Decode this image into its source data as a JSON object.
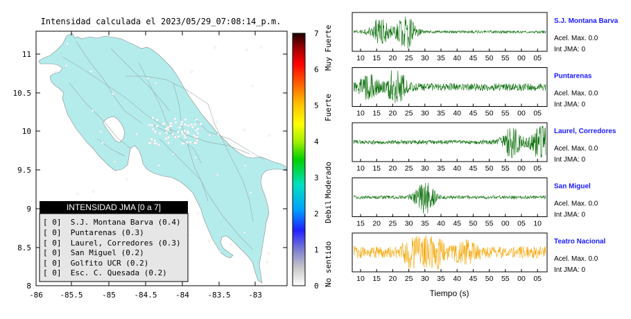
{
  "map": {
    "title": "Intensidad calculada el 2023/05/29_07:08:14_p.m.",
    "x_ticks": [
      "-86",
      "-85.5",
      "-85",
      "-84.5",
      "-84",
      "-83.5",
      "-83"
    ],
    "y_ticks": [
      "11",
      "10.5",
      "10",
      "9.5",
      "9",
      "8.5",
      "8"
    ],
    "land_color": "#b4ecec",
    "legend": {
      "title": "INTENSIDAD JMA [0 a 7]",
      "items": [
        "[ 0]  S.J. Montana Barva (0.4)",
        "[ 0]  Puntarenas (0.3)",
        "[ 0]  Laurel, Corredores (0.3)",
        "[ 0]  San Miguel (0.2)",
        "[ 0]  Golfito UCR (0.2)",
        "[ 0]  Esc. C. Quesada (0.2)"
      ]
    }
  },
  "colorbar": {
    "ticks": [
      "7",
      "6",
      "5",
      "4",
      "3",
      "2",
      "1",
      "0"
    ],
    "category_labels": [
      "Muy Fuerte",
      "Fuerte",
      "Moderado",
      "Debil",
      "No sentido"
    ]
  },
  "chart_data": [
    {
      "type": "map",
      "title": "Intensidad calculada el 2023/05/29_07:08:14_p.m.",
      "xlim": [
        -86,
        -82.6
      ],
      "ylim": [
        8,
        11.3
      ],
      "grid": false,
      "legend_position": "bottom-left",
      "legend_title": "INTENSIDAD JMA [0 a 7]",
      "stations": [
        {
          "name": "S.J. Montana Barva",
          "jma": 0,
          "intensity": 0.4
        },
        {
          "name": "Puntarenas",
          "jma": 0,
          "intensity": 0.3
        },
        {
          "name": "Laurel, Corredores",
          "jma": 0,
          "intensity": 0.3
        },
        {
          "name": "San Miguel",
          "jma": 0,
          "intensity": 0.2
        },
        {
          "name": "Golfito UCR",
          "jma": 0,
          "intensity": 0.2
        },
        {
          "name": "Esc. C. Quesada",
          "jma": 0,
          "intensity": 0.2
        }
      ],
      "colorbar": {
        "range": [
          0,
          7
        ],
        "ticks": [
          0,
          1,
          2,
          3,
          4,
          5,
          6,
          7
        ],
        "labels": [
          "No sentido",
          "Debil",
          "Moderado",
          "Fuerte",
          "Muy Fuerte"
        ]
      }
    },
    {
      "type": "line",
      "xlabel": "Tiempo (s)",
      "traces": [
        {
          "station": "S.J. Montana Barva",
          "acel_max": "Acel. Max. 0.0",
          "int_jma": "Int JMA: 0",
          "color": "#0a6e0a",
          "x_tick_labels": [
            "10",
            "15",
            "20",
            "25",
            "30",
            "35",
            "40",
            "45",
            "50",
            "55",
            "00",
            "05"
          ],
          "bursts": [
            {
              "at_label_index": 1.2,
              "amp": 0.75
            },
            {
              "at_label_index": 2.8,
              "amp": 0.95
            }
          ],
          "noise": 0.08
        },
        {
          "station": "Puntarenas",
          "acel_max": "Acel. Max. 0.0",
          "int_jma": "Int JMA: 0",
          "color": "#0a6e0a",
          "x_tick_labels": [
            "10",
            "15",
            "20",
            "25",
            "30",
            "35",
            "40",
            "45",
            "50",
            "55",
            "00",
            "05"
          ],
          "bursts": [
            {
              "at_label_index": 0.5,
              "amp": 0.6
            },
            {
              "at_label_index": 2.2,
              "amp": 0.95
            }
          ],
          "noise": 0.22
        },
        {
          "station": "Laurel, Corredores",
          "acel_max": "Acel. Max. 0.0",
          "int_jma": "Int JMA: 0",
          "color": "#0a6e0a",
          "x_tick_labels": [
            "10",
            "15",
            "20",
            "25",
            "30",
            "35",
            "40",
            "45",
            "50",
            "55",
            "00",
            "05"
          ],
          "bursts": [
            {
              "at_label_index": 9.4,
              "amp": 0.85
            },
            {
              "at_label_index": 11.2,
              "amp": 0.95
            }
          ],
          "noise": 0.12
        },
        {
          "station": "San Miguel",
          "acel_max": "Acel. Max. 0.0",
          "int_jma": "Int JMA: 0",
          "color": "#0a6e0a",
          "x_tick_labels": [
            "15",
            "20",
            "25",
            "30",
            "35",
            "40",
            "45",
            "50",
            "55",
            "00",
            "05",
            "10"
          ],
          "bursts": [
            {
              "at_label_index": 4.0,
              "amp": 0.95
            }
          ],
          "noise": 0.1
        },
        {
          "station": "Teatro Nacional",
          "acel_max": "Acel. Max. 0.0",
          "int_jma": "Int JMA: 0",
          "color": "#f5a500",
          "x_tick_labels": [
            "10",
            "15",
            "20",
            "25",
            "30",
            "35",
            "40",
            "45",
            "50",
            "55",
            "00",
            "05"
          ],
          "bursts": [
            {
              "at_label_index": 3.3,
              "amp": 0.8
            },
            {
              "at_label_index": 4.5,
              "amp": 0.9
            },
            {
              "at_label_index": 6.5,
              "amp": 0.5
            }
          ],
          "noise": 0.35
        }
      ]
    }
  ]
}
